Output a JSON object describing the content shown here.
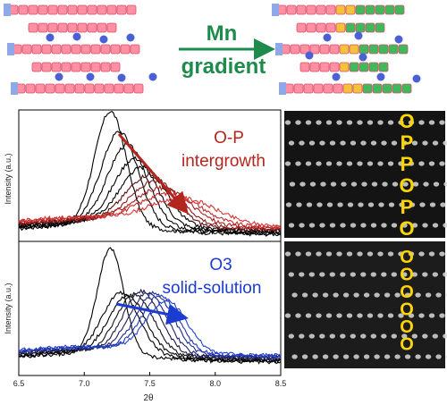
{
  "schematic": {
    "arrow_label_line1": "Mn",
    "arrow_label_line2": "gradient",
    "colors": {
      "octahedra_pink": "#ff8fa3",
      "octahedra_edge": "#d9506b",
      "prism_blue": "#8fa8e8",
      "ion_blue": "#4b5fd6",
      "gradient_yellow": "#f2c23a",
      "gradient_green": "#3dbb5a",
      "arrow_green": "#1e8b4c"
    }
  },
  "chart_data": [
    {
      "type": "line",
      "panel": "top",
      "annotation": [
        "O-P",
        "intergrowth"
      ],
      "annotation_color": "#b3261e",
      "ylabel": "Intensity (a.u.)",
      "xlim": [
        6.5,
        8.5
      ],
      "series": [
        {
          "peak": 7.2,
          "height": 1.0,
          "width": 0.12,
          "color": "#000000"
        },
        {
          "peak": 7.27,
          "height": 0.82,
          "width": 0.14,
          "color": "#000000"
        },
        {
          "peak": 7.33,
          "height": 0.7,
          "width": 0.15,
          "color": "#000000"
        },
        {
          "peak": 7.39,
          "height": 0.58,
          "width": 0.16,
          "color": "#000000"
        },
        {
          "peak": 7.45,
          "height": 0.5,
          "width": 0.17,
          "color": "#000000"
        },
        {
          "peak": 7.5,
          "height": 0.43,
          "width": 0.18,
          "color": "#5a1010"
        },
        {
          "peak": 7.55,
          "height": 0.37,
          "width": 0.19,
          "color": "#8a1a1a"
        },
        {
          "peak": 7.6,
          "height": 0.31,
          "width": 0.21,
          "color": "#a82020"
        },
        {
          "peak": 7.66,
          "height": 0.26,
          "width": 0.23,
          "color": "#c42a2a"
        },
        {
          "peak": 7.76,
          "height": 0.22,
          "width": 0.25,
          "color": "#d93434"
        }
      ]
    },
    {
      "type": "line",
      "panel": "bottom",
      "annotation": [
        "O3",
        "solid-solution"
      ],
      "annotation_color": "#1c3bd0",
      "ylabel": "Intensity (a.u.)",
      "xlabel": "2θ",
      "xlim": [
        6.5,
        8.5
      ],
      "xticks": [
        "6.5",
        "7.0",
        "7.5",
        "8.0",
        "8.5"
      ],
      "series": [
        {
          "peak": 7.2,
          "height": 1.0,
          "width": 0.1,
          "color": "#000000"
        },
        {
          "peak": 7.28,
          "height": 0.58,
          "width": 0.14,
          "color": "#000000"
        },
        {
          "peak": 7.33,
          "height": 0.55,
          "width": 0.14,
          "color": "#000000"
        },
        {
          "peak": 7.39,
          "height": 0.56,
          "width": 0.14,
          "color": "#111111"
        },
        {
          "peak": 7.44,
          "height": 0.58,
          "width": 0.14,
          "color": "#1a1a40"
        },
        {
          "peak": 7.49,
          "height": 0.57,
          "width": 0.14,
          "color": "#202068"
        },
        {
          "peak": 7.54,
          "height": 0.56,
          "width": 0.14,
          "color": "#1f2a90"
        },
        {
          "peak": 7.58,
          "height": 0.53,
          "width": 0.14,
          "color": "#1f35b0"
        },
        {
          "peak": 7.63,
          "height": 0.48,
          "width": 0.15,
          "color": "#2040d0"
        }
      ]
    }
  ],
  "micrographs": {
    "top_stacking": [
      "O",
      "P",
      "P",
      "O",
      "P",
      "O"
    ],
    "bottom_stacking": [
      "O",
      "O",
      "O",
      "O",
      "O",
      "O"
    ],
    "letter_color": "#ffd500"
  }
}
